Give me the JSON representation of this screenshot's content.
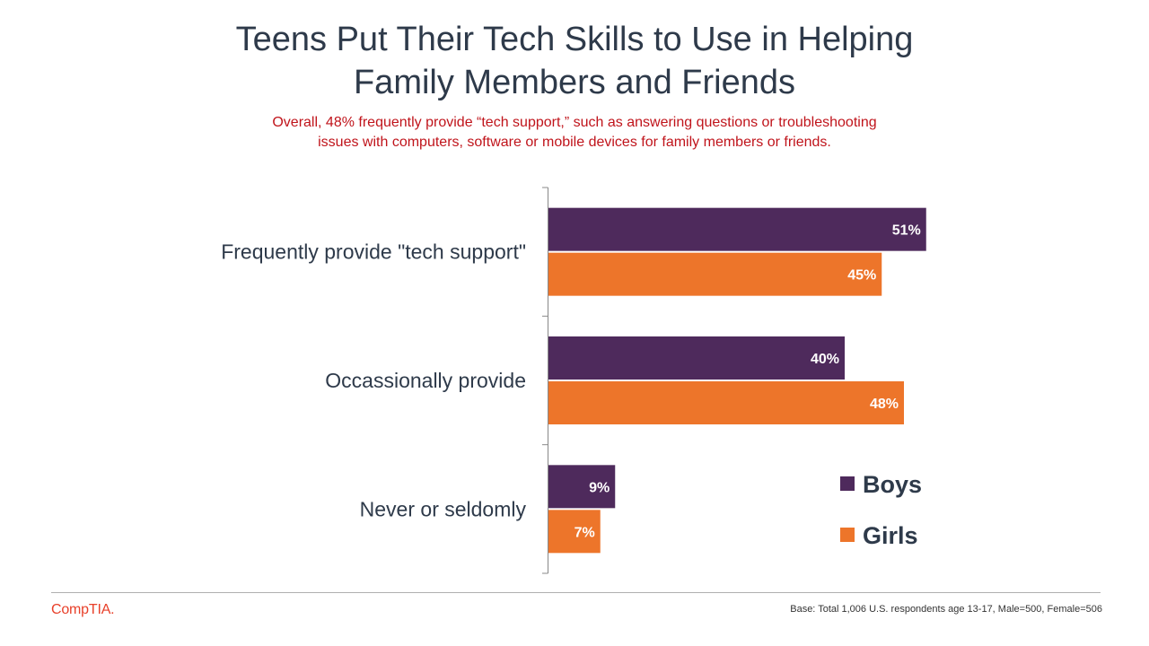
{
  "title_lines": [
    "Teens Put Their Tech Skills to Use in Helping",
    "Family Members and Friends"
  ],
  "subtitle_lines": [
    "Overall, 48% frequently provide “tech support,” such as answering questions or troubleshooting",
    "issues with computers, software or mobile devices for family members or friends."
  ],
  "chart_data": {
    "type": "bar",
    "orientation": "horizontal",
    "categories": [
      "Frequently provide \"tech support\"",
      "Occassionally provide",
      "Never or seldomly"
    ],
    "series": [
      {
        "name": "Boys",
        "values": [
          51,
          40,
          9
        ],
        "labels": [
          "51%",
          "40%",
          "9%"
        ],
        "color": "#4e2a5c"
      },
      {
        "name": "Girls",
        "values": [
          45,
          48,
          7
        ],
        "labels": [
          "45%",
          "48%",
          "7%"
        ],
        "color": "#ed752a"
      }
    ],
    "xlim": [
      0,
      100
    ],
    "grid": false,
    "legend": "right"
  },
  "footer": {
    "brand": "CompTIA.",
    "footnote": "Base: Total 1,006 U.S. respondents age 13-17, Male=500, Female=506"
  }
}
